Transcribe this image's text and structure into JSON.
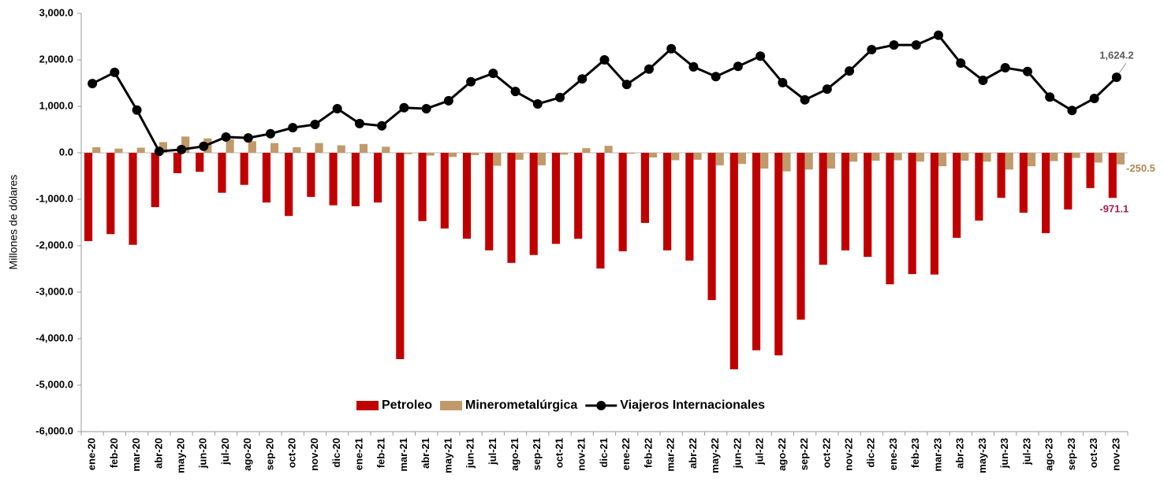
{
  "chart_data": {
    "type": "bar_line",
    "y_label": "Millones de dólares",
    "categories": [
      "ene-20",
      "feb-20",
      "mar-20",
      "abr-20",
      "may-20",
      "jun-20",
      "jul-20",
      "ago-20",
      "sep-20",
      "oct-20",
      "nov-20",
      "dic-20",
      "ene-21",
      "feb-21",
      "mar-21",
      "abr-21",
      "may-21",
      "jun-21",
      "jul-21",
      "ago-21",
      "sep-21",
      "oct-21",
      "nov-21",
      "dic-21",
      "ene-22",
      "feb-22",
      "mar-22",
      "abr-22",
      "may-22",
      "jun-22",
      "jul-22",
      "ago-22",
      "sep-22",
      "oct-22",
      "nov-22",
      "dic-22",
      "ene-23",
      "feb-23",
      "mar-23",
      "abr-23",
      "may-23",
      "jun-23",
      "jul-23",
      "ago-23",
      "sep-23",
      "oct-23",
      "nov-23"
    ],
    "series": [
      {
        "name": "Petroleo",
        "type": "bar",
        "color": "#c00000",
        "label_color": "#a3204a",
        "values": [
          -1900,
          -1750,
          -1980,
          -1170,
          -440,
          -410,
          -860,
          -690,
          -1070,
          -1360,
          -950,
          -1130,
          -1150,
          -1070,
          -4440,
          -1470,
          -1630,
          -1850,
          -2100,
          -2370,
          -2200,
          -1960,
          -1850,
          -2490,
          -2120,
          -1510,
          -2100,
          -2320,
          -3170,
          -4660,
          -4250,
          -4360,
          -3590,
          -2410,
          -2100,
          -2240,
          -2830,
          -2610,
          -2620,
          -1830,
          -1460,
          -970,
          -1290,
          -1730,
          -1220,
          -760,
          -971.1
        ],
        "value_labels": [
          null,
          null,
          null,
          null,
          null,
          null,
          null,
          null,
          null,
          null,
          null,
          null,
          null,
          null,
          null,
          null,
          null,
          null,
          null,
          null,
          null,
          null,
          null,
          null,
          null,
          null,
          null,
          null,
          null,
          null,
          null,
          null,
          null,
          null,
          null,
          null,
          null,
          null,
          null,
          null,
          null,
          null,
          null,
          null,
          null,
          null,
          "-971.1"
        ]
      },
      {
        "name": "Minerometalúrgica",
        "type": "bar",
        "color": "#c09a6b",
        "label_color": "#b08850",
        "values": [
          120,
          90,
          110,
          230,
          350,
          310,
          290,
          250,
          210,
          120,
          210,
          160,
          190,
          130,
          -30,
          -60,
          -90,
          -50,
          -280,
          -150,
          -270,
          -40,
          100,
          150,
          -20,
          -100,
          -160,
          -150,
          -270,
          -240,
          -340,
          -400,
          -360,
          -340,
          -190,
          -170,
          -160,
          -190,
          -290,
          -170,
          -190,
          -360,
          -290,
          -180,
          -110,
          -210,
          -250.5
        ],
        "value_labels": [
          null,
          null,
          null,
          null,
          null,
          null,
          null,
          null,
          null,
          null,
          null,
          null,
          null,
          null,
          null,
          null,
          null,
          null,
          null,
          null,
          null,
          null,
          null,
          null,
          null,
          null,
          null,
          null,
          null,
          null,
          null,
          null,
          null,
          null,
          null,
          null,
          null,
          null,
          null,
          null,
          null,
          null,
          null,
          null,
          null,
          null,
          "-250.5"
        ]
      },
      {
        "name": "Viajeros Internacionales",
        "type": "line",
        "color": "#000000",
        "label_color": "#595959",
        "values": [
          1490,
          1730,
          920,
          30,
          70,
          140,
          340,
          320,
          410,
          540,
          610,
          950,
          630,
          580,
          970,
          950,
          1120,
          1530,
          1710,
          1320,
          1050,
          1190,
          1590,
          2000,
          1470,
          1800,
          2240,
          1850,
          1640,
          1860,
          2080,
          1510,
          1140,
          1370,
          1760,
          2220,
          2320,
          2320,
          2530,
          1930,
          1560,
          1830,
          1750,
          1200,
          910,
          1170,
          1624.2
        ],
        "value_labels": [
          null,
          null,
          null,
          null,
          null,
          null,
          null,
          null,
          null,
          null,
          null,
          null,
          null,
          null,
          null,
          null,
          null,
          null,
          null,
          null,
          null,
          null,
          null,
          null,
          null,
          null,
          null,
          null,
          null,
          null,
          null,
          null,
          null,
          null,
          null,
          null,
          null,
          null,
          null,
          null,
          null,
          null,
          null,
          null,
          null,
          null,
          "1,624.2"
        ]
      }
    ],
    "ylim": [
      -6000,
      3000
    ],
    "yticks": [
      {
        "value": 3000,
        "label": "3,000.0"
      },
      {
        "value": 2000,
        "label": "2,000.0"
      },
      {
        "value": 1000,
        "label": "1,000.0"
      },
      {
        "value": 0,
        "label": "0.0"
      },
      {
        "value": -1000,
        "label": "-1,000.0"
      },
      {
        "value": -2000,
        "label": "-2,000.0"
      },
      {
        "value": -3000,
        "label": "-3,000.0"
      },
      {
        "value": -4000,
        "label": "-4,000.0"
      },
      {
        "value": -5000,
        "label": "-5,000.0"
      },
      {
        "value": -6000,
        "label": "-6,000.0"
      }
    ],
    "grid": false,
    "legend": "bottom"
  }
}
